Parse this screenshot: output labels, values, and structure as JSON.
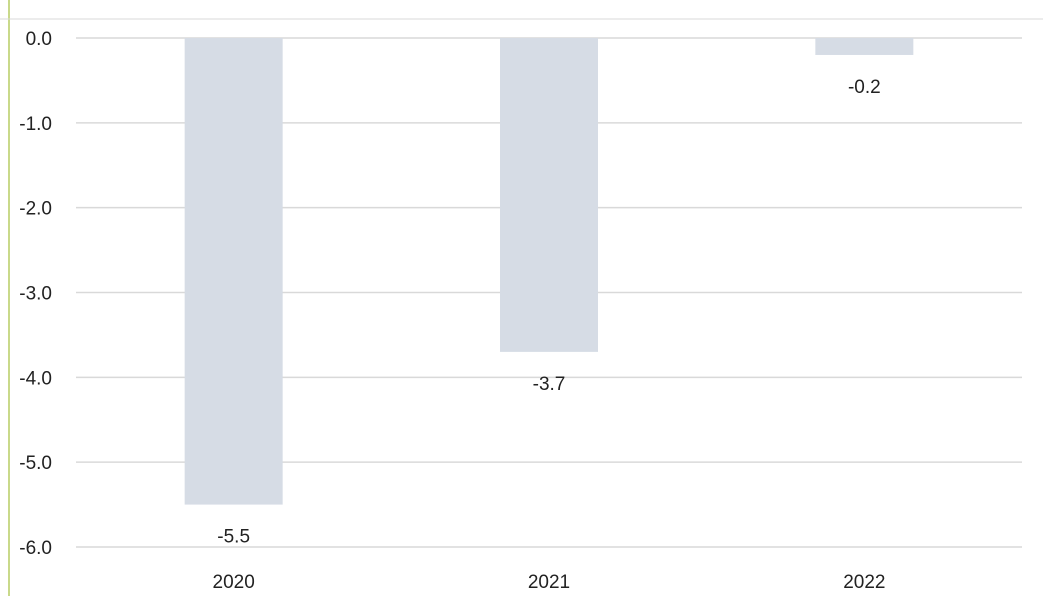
{
  "chart_data": {
    "type": "bar",
    "title": "",
    "xlabel": "",
    "ylabel": "",
    "categories": [
      "2020",
      "2021",
      "2022"
    ],
    "values": [
      -5.5,
      -3.7,
      -0.2
    ],
    "data_labels": [
      "-5.5",
      "-3.7",
      "-0.2"
    ],
    "ylim": [
      -6.0,
      0.0
    ],
    "yticks": [
      0.0,
      -1.0,
      -2.0,
      -3.0,
      -4.0,
      -5.0,
      -6.0
    ],
    "ytick_labels": [
      "0.0",
      "-1.0",
      "-2.0",
      "-3.0",
      "-4.0",
      "-5.0",
      "-6.0"
    ],
    "grid": true,
    "legend": "none",
    "colors": {
      "bar": "#d6dce5",
      "grid": "#d9d9d9",
      "text": "#222222",
      "left_edge": "#c9d98a"
    }
  }
}
